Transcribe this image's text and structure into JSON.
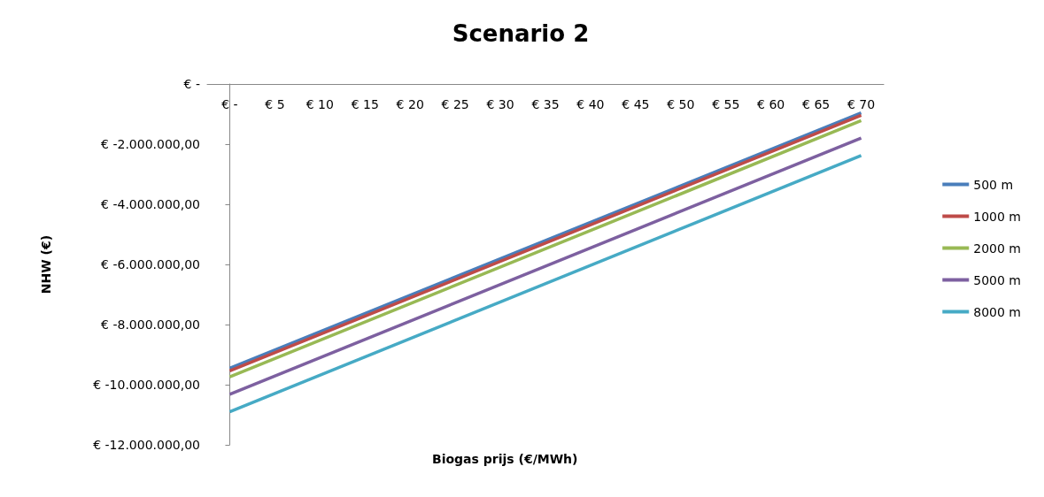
{
  "chart_data": {
    "type": "line",
    "title": "Scenario 2",
    "xlabel": "Biogas prijs (€/MWh)",
    "ylabel": "NHW (€)",
    "x": [
      0,
      70
    ],
    "series": [
      {
        "name": "500 m",
        "color": "#4a7ebb",
        "values": [
          -9450000,
          -960000
        ]
      },
      {
        "name": "1000 m",
        "color": "#be4b48",
        "values": [
          -9540000,
          -1040000
        ]
      },
      {
        "name": "2000 m",
        "color": "#98b954",
        "values": [
          -9740000,
          -1220000
        ]
      },
      {
        "name": "5000 m",
        "color": "#7d60a0",
        "values": [
          -10320000,
          -1800000
        ]
      },
      {
        "name": "8000 m",
        "color": "#46aac5",
        "values": [
          -10900000,
          -2380000
        ]
      }
    ],
    "xlim": [
      -2.5,
      72.5
    ],
    "xticks": [
      {
        "value": 0,
        "label": "€ -"
      },
      {
        "value": 5,
        "label": "€ 5"
      },
      {
        "value": 10,
        "label": "€ 10"
      },
      {
        "value": 15,
        "label": "€ 15"
      },
      {
        "value": 20,
        "label": "€ 20"
      },
      {
        "value": 25,
        "label": "€ 25"
      },
      {
        "value": 30,
        "label": "€ 30"
      },
      {
        "value": 35,
        "label": "€ 35"
      },
      {
        "value": 40,
        "label": "€ 40"
      },
      {
        "value": 45,
        "label": "€ 45"
      },
      {
        "value": 50,
        "label": "€ 50"
      },
      {
        "value": 55,
        "label": "€ 55"
      },
      {
        "value": 60,
        "label": "€ 60"
      },
      {
        "value": 65,
        "label": "€ 65"
      },
      {
        "value": 70,
        "label": "€ 70"
      }
    ],
    "ylim": [
      -12000000,
      0
    ],
    "yticks": [
      {
        "value": -12000000,
        "label": "€ -12.000.000,00"
      },
      {
        "value": -10000000,
        "label": "€ -10.000.000,00"
      },
      {
        "value": -8000000,
        "label": "€ -8.000.000,00"
      },
      {
        "value": -6000000,
        "label": "€ -6.000.000,00"
      },
      {
        "value": -4000000,
        "label": "€ -4.000.000,00"
      },
      {
        "value": -2000000,
        "label": "€ -2.000.000,00"
      },
      {
        "value": 0,
        "label": "€ -"
      }
    ],
    "grid": false,
    "legend": "right",
    "marker": "none",
    "line_style": "solid"
  }
}
